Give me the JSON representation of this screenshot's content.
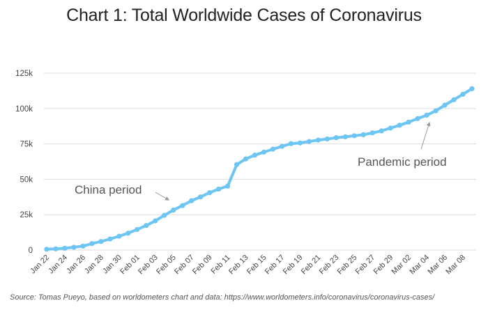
{
  "title": "Chart 1: Total Worldwide Cases of Coronavirus",
  "source": "Source: Tomas Pueyo, based on worldometers chart and data: https://www.worldometers.info/coronavirus/coronavirus-cases/",
  "chart_data": {
    "type": "line",
    "title": "Chart 1: Total Worldwide Cases of Coronavirus",
    "xlabel": "",
    "ylabel": "",
    "ylim": [
      0,
      125000
    ],
    "y_ticks": [
      0,
      25000,
      50000,
      75000,
      100000,
      125000
    ],
    "y_tick_labels": [
      "0",
      "25k",
      "50k",
      "75k",
      "100k",
      "125k"
    ],
    "x_tick_labels": [
      "Jan 22",
      "Jan 24",
      "Jan 26",
      "Jan 28",
      "Jan 30",
      "Feb 01",
      "Feb 03",
      "Feb 05",
      "Feb 07",
      "Feb 09",
      "Feb 11",
      "Feb 13",
      "Feb 15",
      "Feb 17",
      "Feb 19",
      "Feb 21",
      "Feb 23",
      "Feb 25",
      "Feb 27",
      "Feb 29",
      "Mar 02",
      "Mar 04",
      "Mar 06",
      "Mar 08"
    ],
    "grid": true,
    "line_color": "#6cc5f2",
    "series": [
      {
        "x": [
          "Jan 22",
          "Jan 23",
          "Jan 24",
          "Jan 25",
          "Jan 26",
          "Jan 27",
          "Jan 28",
          "Jan 29",
          "Jan 30",
          "Jan 31",
          "Feb 01",
          "Feb 02",
          "Feb 03",
          "Feb 04",
          "Feb 05",
          "Feb 06",
          "Feb 07",
          "Feb 08",
          "Feb 09",
          "Feb 10",
          "Feb 11",
          "Feb 12",
          "Feb 13",
          "Feb 14",
          "Feb 15",
          "Feb 16",
          "Feb 17",
          "Feb 18",
          "Feb 19",
          "Feb 20",
          "Feb 21",
          "Feb 22",
          "Feb 23",
          "Feb 24",
          "Feb 25",
          "Feb 26",
          "Feb 27",
          "Feb 28",
          "Feb 29",
          "Mar 01",
          "Mar 02",
          "Mar 03",
          "Mar 04",
          "Mar 05",
          "Mar 06",
          "Mar 07",
          "Mar 08",
          "Mar 09"
        ],
        "values": [
          580,
          845,
          1320,
          2010,
          2800,
          4580,
          6060,
          7820,
          9820,
          11950,
          14550,
          17390,
          20630,
          24550,
          28280,
          31440,
          34880,
          37560,
          40550,
          43100,
          45200,
          60400,
          64400,
          67100,
          69200,
          71300,
          73300,
          75200,
          75700,
          76700,
          77700,
          78500,
          79400,
          80000,
          80800,
          81500,
          82800,
          84200,
          86200,
          88200,
          90400,
          92900,
          95300,
          98400,
          102400,
          106200,
          110100,
          114000
        ]
      }
    ],
    "annotations": [
      {
        "text": "China period",
        "points_to": "Feb 05"
      },
      {
        "text": "Pandemic period",
        "points_to": "Mar 04"
      }
    ]
  }
}
